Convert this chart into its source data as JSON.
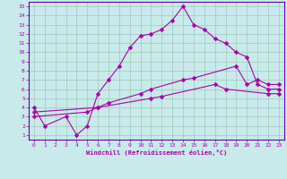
{
  "xlabel": "Windchill (Refroidissement éolien,°C)",
  "bg_color": "#c8eaea",
  "grid_color": "#a0c8b8",
  "line_color": "#aa00aa",
  "spine_color": "#6600aa",
  "xlim": [
    -0.5,
    23.5
  ],
  "ylim": [
    0.5,
    15.5
  ],
  "xticks": [
    0,
    1,
    2,
    3,
    4,
    5,
    6,
    7,
    8,
    9,
    10,
    11,
    12,
    13,
    14,
    15,
    16,
    17,
    18,
    19,
    20,
    21,
    22,
    23
  ],
  "yticks": [
    1,
    2,
    3,
    4,
    5,
    6,
    7,
    8,
    9,
    10,
    11,
    12,
    13,
    14,
    15
  ],
  "line1_x": [
    0,
    1,
    3,
    4,
    5,
    6,
    7,
    8,
    9,
    10,
    11,
    12,
    13,
    14,
    15,
    16,
    17,
    18,
    19,
    20,
    21,
    22,
    23
  ],
  "line1_y": [
    4,
    2,
    3,
    1,
    2,
    5.5,
    7,
    8.5,
    10.5,
    11.8,
    12,
    12.5,
    13.5,
    15,
    13,
    12.5,
    11.5,
    11,
    10,
    9.5,
    6.5,
    6,
    6
  ],
  "line2_x": [
    0,
    6,
    7,
    10,
    11,
    14,
    15,
    19,
    20,
    21,
    22,
    23
  ],
  "line2_y": [
    3.5,
    4,
    4.5,
    5.5,
    6,
    7,
    7.2,
    8.5,
    6.5,
    7,
    6.5,
    6.5
  ],
  "line3_x": [
    0,
    5,
    6,
    11,
    12,
    17,
    18,
    22,
    23
  ],
  "line3_y": [
    3,
    3.5,
    4,
    5,
    5.2,
    6.5,
    6,
    5.5,
    5.5
  ],
  "markersize": 2.5,
  "linewidth": 0.8
}
